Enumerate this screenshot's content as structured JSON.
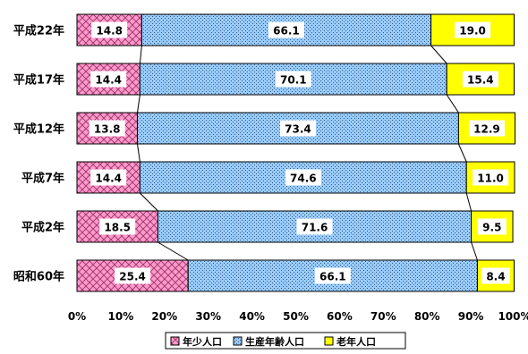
{
  "chart_data": {
    "type": "bar",
    "orientation": "horizontal",
    "stacked": "percent",
    "categories": [
      "平成22年",
      "平成17年",
      "平成12年",
      "平成7年",
      "平成2年",
      "昭和60年"
    ],
    "series": [
      {
        "name": "年少人口",
        "values": [
          14.8,
          14.4,
          13.8,
          14.4,
          18.5,
          25.4
        ],
        "color": "#ff99cc",
        "pattern": "crosshatch"
      },
      {
        "name": "生産年齢人口",
        "values": [
          66.1,
          70.1,
          73.4,
          74.6,
          71.6,
          66.1
        ],
        "color": "#99ccff",
        "pattern": "dots"
      },
      {
        "name": "老年人口",
        "values": [
          19.0,
          15.4,
          12.9,
          11.0,
          9.5,
          8.4
        ],
        "color": "#ffff00",
        "pattern": "solid"
      }
    ],
    "data_labels": [
      [
        "14.8",
        "66.1",
        "19.0"
      ],
      [
        "14.4",
        "70.1",
        "15.4"
      ],
      [
        "13.8",
        "73.4",
        "12.9"
      ],
      [
        "14.4",
        "74.6",
        "11.0"
      ],
      [
        "18.5",
        "71.6",
        "9.5"
      ],
      [
        "25.4",
        "66.1",
        "8.4"
      ]
    ],
    "x_ticks": [
      "0%",
      "10%",
      "20%",
      "30%",
      "40%",
      "50%",
      "60%",
      "70%",
      "80%",
      "90%",
      "100%"
    ],
    "xlim": [
      0,
      100
    ],
    "grid": false,
    "series_lines": true,
    "legend_position": "bottom"
  }
}
